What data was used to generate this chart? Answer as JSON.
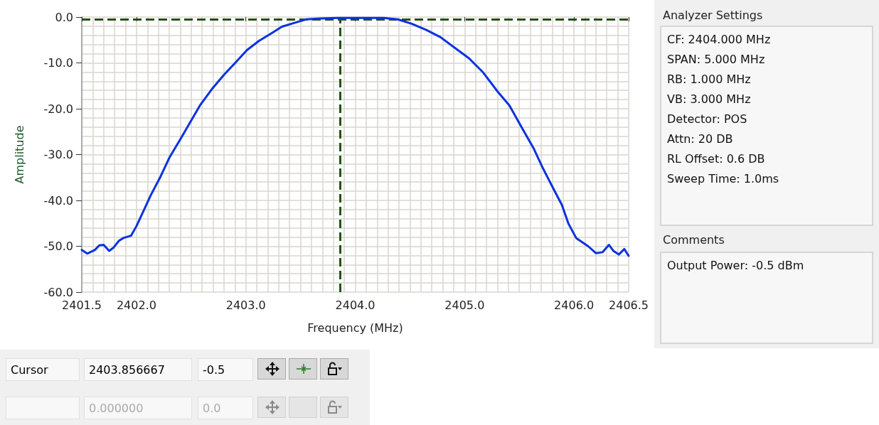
{
  "chart_data": {
    "type": "line",
    "xlabel": "Frequency (MHz)",
    "ylabel": "Amplitude",
    "x": [
      2401.5,
      2401.55,
      2401.62,
      2401.66,
      2401.7,
      2401.75,
      2401.79,
      2401.84,
      2401.88,
      2401.95,
      2402.0,
      2402.07,
      2402.13,
      2402.22,
      2402.3,
      2402.39,
      2402.48,
      2402.58,
      2402.69,
      2402.8,
      2402.91,
      2403.01,
      2403.12,
      2403.23,
      2403.33,
      2403.44,
      2403.55,
      2403.68,
      2403.84,
      2404.0,
      2404.26,
      2404.39,
      2404.52,
      2404.65,
      2404.78,
      2404.91,
      2405.04,
      2405.17,
      2405.3,
      2405.41,
      2405.52,
      2405.63,
      2405.71,
      2405.8,
      2405.89,
      2405.95,
      2406.02,
      2406.13,
      2406.2,
      2406.26,
      2406.32,
      2406.36,
      2406.41,
      2406.46,
      2406.5
    ],
    "series": [
      {
        "color": "#0a32e0",
        "values": [
          -50.8,
          -51.6,
          -50.8,
          -49.8,
          -49.7,
          -51.0,
          -50.3,
          -48.8,
          -48.2,
          -47.7,
          -45.6,
          -42.0,
          -38.9,
          -34.8,
          -30.7,
          -27.1,
          -23.4,
          -19.3,
          -15.7,
          -12.6,
          -9.8,
          -7.2,
          -5.2,
          -3.6,
          -2.1,
          -1.3,
          -0.5,
          -0.3,
          -0.2,
          -0.2,
          -0.2,
          -0.5,
          -1.5,
          -2.8,
          -4.4,
          -6.7,
          -9.0,
          -12.1,
          -16.2,
          -19.3,
          -24.0,
          -28.6,
          -32.7,
          -36.9,
          -41.0,
          -45.1,
          -48.2,
          -50.0,
          -51.5,
          -51.3,
          -49.7,
          -51.0,
          -51.8,
          -50.6,
          -52.1
        ]
      }
    ],
    "xlim": [
      2401.5,
      2406.5
    ],
    "xticks": [
      {
        "value": 2401.5,
        "label": "2401.5"
      },
      {
        "value": 2402,
        "label": "2402.0"
      },
      {
        "value": 2403,
        "label": "2403.0"
      },
      {
        "value": 2404,
        "label": "2404.0"
      },
      {
        "value": 2405,
        "label": "2405.0"
      },
      {
        "value": 2406,
        "label": "2406.0"
      },
      {
        "value": 2406.5,
        "label": "2406.5"
      }
    ],
    "ylim": [
      -60,
      0
    ],
    "yticks": [
      {
        "value": -60,
        "label": "-60.0"
      },
      {
        "value": -50,
        "label": "-50.0"
      },
      {
        "value": -40,
        "label": "-40.0"
      },
      {
        "value": -30,
        "label": "-30.0"
      },
      {
        "value": -20,
        "label": "-20.0"
      },
      {
        "value": -10,
        "label": "-10.0"
      },
      {
        "value": 0,
        "label": "0.0"
      }
    ],
    "grid": true,
    "marker": "none",
    "line_style": "solid",
    "ref_lines": [
      {
        "axis": "x",
        "value": 2403.856667,
        "color": "#245214",
        "line_style": "dashed"
      },
      {
        "axis": "y",
        "value": -0.5,
        "color": "#245214",
        "line_style": "dashed"
      }
    ],
    "annotations": [
      "Analyzer Settings",
      "CF: 2404.000 MHz",
      "SPAN: 5.000 MHz",
      "RB: 1.000 MHz",
      "VB: 3.000 MHz",
      "Detector: POS",
      "Attn: 20 DB",
      "RL Offset: 0.6 DB",
      "Sweep Time: 1.0ms",
      "Comments",
      "Output Power: -0.5 dBm",
      "Cursor",
      "2403.856667",
      "-0.5",
      "0.000000",
      "0.0"
    ]
  }
}
